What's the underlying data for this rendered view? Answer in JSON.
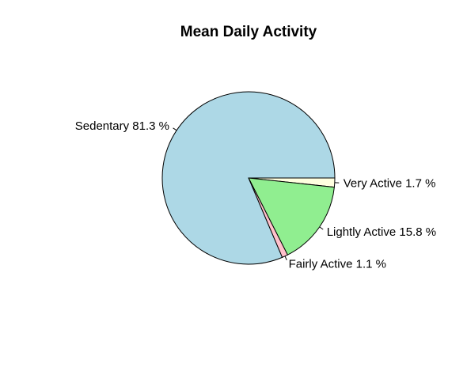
{
  "chart_data": {
    "type": "pie",
    "title": "Mean Daily Activity",
    "categories": [
      "Very Active",
      "Lightly Active",
      "Fairly Active",
      "Sedentary"
    ],
    "values": [
      1.7,
      15.8,
      1.1,
      81.3
    ],
    "unit": "%",
    "labels": [
      "Very Active 1.7 %",
      "Lightly Active 15.8 %",
      "Fairly Active 1.1 %",
      "Sedentary 81.3 %"
    ],
    "colors": [
      "#ffffe0",
      "#90ee90",
      "#ffc0cb",
      "#add8e6"
    ],
    "direction": "clockwise",
    "start_angle_deg": 0,
    "legend": "none",
    "grid": false
  }
}
